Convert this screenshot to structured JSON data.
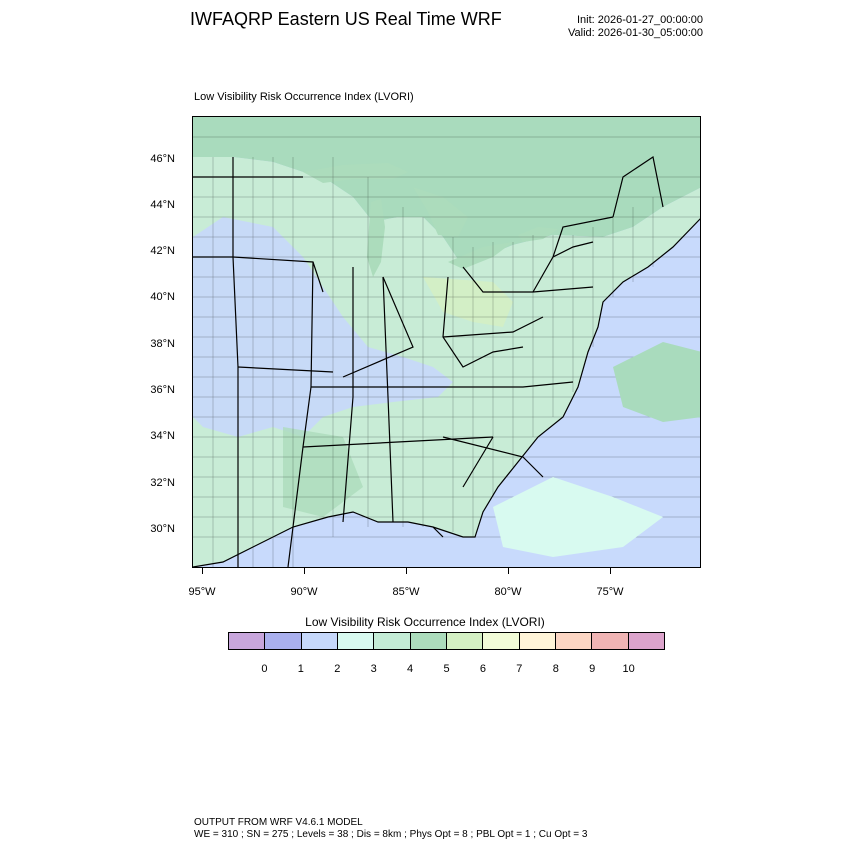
{
  "header": {
    "title": "IWFAQRP Eastern US Real Time WRF",
    "init": "Init: 2026-01-27_00:00:00",
    "valid": "Valid: 2026-01-30_05:00:00"
  },
  "plot": {
    "subtitle": "Low Visibility Risk Occurrence Index   (LVORI)",
    "lat_ticks": [
      "46°N",
      "44°N",
      "42°N",
      "40°N",
      "38°N",
      "36°N",
      "34°N",
      "32°N",
      "30°N"
    ],
    "lon_ticks": [
      "95°W",
      "90°W",
      "85°W",
      "80°W",
      "75°W"
    ]
  },
  "colorbar": {
    "title": "Low Visibility Risk Occurrence Index  (LVORI)",
    "labels": [
      "0",
      "1",
      "2",
      "3",
      "4",
      "5",
      "6",
      "7",
      "8",
      "9",
      "10"
    ],
    "colors": [
      "#c8a6dc",
      "#aab0ee",
      "#c6d8fb",
      "#d8faf0",
      "#c4ecd6",
      "#acdcbc",
      "#d4f0c4",
      "#f2fcd8",
      "#fff4d8",
      "#fcd6c4",
      "#f0b4b4",
      "#dca4cc"
    ]
  },
  "footer": {
    "line1": "OUTPUT FROM WRF V4.6.1 MODEL",
    "line2": "WE = 310 ; SN = 275 ; Levels = 38 ; Dis = 8km ; Phys Opt = 8 ; PBL Opt = 1 ; Cu Opt = 3"
  }
}
